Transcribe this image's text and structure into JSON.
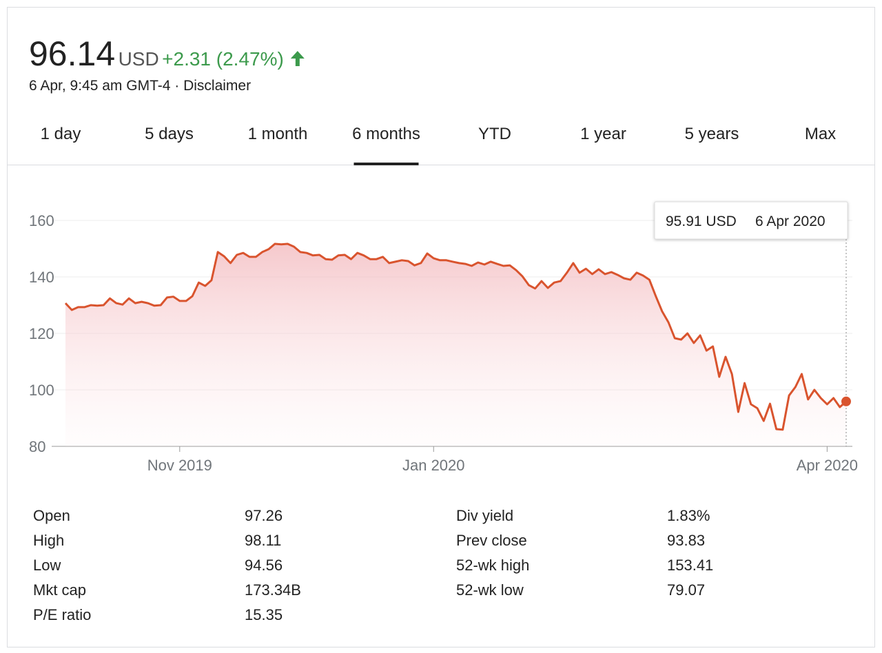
{
  "header": {
    "price": "96.14",
    "currency": "USD",
    "change": "+2.31 (2.47%)",
    "change_color": "#3c9a4c",
    "timestamp": "6 Apr, 9:45 am GMT-4 · Disclaimer"
  },
  "tabs": {
    "items": [
      "1 day",
      "5 days",
      "1 month",
      "6 months",
      "YTD",
      "1 year",
      "5 years",
      "Max"
    ],
    "active": 3
  },
  "chart_data": {
    "type": "line",
    "color": "#d9542e",
    "values": [
      130.7,
      128.3,
      129.3,
      129.3,
      130,
      129.8,
      130,
      132.4,
      130.7,
      130.2,
      132.4,
      130.7,
      131.2,
      130.7,
      129.8,
      130,
      132.7,
      133,
      131.5,
      131.5,
      133.2,
      138,
      136.8,
      138.8,
      148.8,
      147.3,
      144.9,
      147.8,
      148.5,
      147.1,
      147.1,
      148.8,
      149.8,
      151.7,
      151.5,
      151.7,
      150.7,
      148.8,
      148.5,
      147.6,
      147.8,
      146.3,
      146.1,
      147.6,
      147.8,
      146.3,
      148.5,
      147.6,
      146.3,
      146.3,
      147.1,
      144.9,
      145.4,
      145.9,
      145.6,
      144.1,
      144.9,
      148.3,
      146.6,
      145.9,
      145.9,
      145.4,
      144.9,
      144.6,
      143.9,
      145.1,
      144.4,
      145.4,
      144.6,
      143.9,
      144.1,
      142.4,
      140.2,
      137.1,
      135.9,
      138.5,
      136.1,
      138,
      138.5,
      141.5,
      144.9,
      141.5,
      142.9,
      141,
      142.7,
      141,
      141.7,
      140.7,
      139.5,
      139,
      141.5,
      140.5,
      139,
      133.2,
      127.8,
      123.9,
      118.3,
      117.8,
      120,
      116.6,
      119.3,
      113.9,
      115.4,
      104.6,
      111.7,
      105.6,
      92.2,
      102.4,
      94.9,
      93.5,
      89,
      95.1,
      86.1,
      85.9,
      98,
      101,
      105.6,
      96.6,
      100,
      97.1,
      94.9,
      97.1,
      93.9,
      95.91
    ],
    "xlim": [
      0,
      123
    ],
    "xticks": [
      {
        "value": 18,
        "label": "Nov 2019"
      },
      {
        "value": 58,
        "label": "Jan 2020"
      },
      {
        "value": 120,
        "label": "Apr 2020"
      }
    ],
    "ylim": [
      80,
      160
    ],
    "yticks": [
      80,
      100,
      120,
      140,
      160
    ],
    "grid": true,
    "tooltip": {
      "value": "95.91",
      "unit": "USD",
      "date": "6 Apr 2020"
    }
  },
  "stats": {
    "left": [
      [
        "Open",
        "97.26"
      ],
      [
        "High",
        "98.11"
      ],
      [
        "Low",
        "94.56"
      ],
      [
        "Mkt cap",
        "173.34B"
      ],
      [
        "P/E ratio",
        "15.35"
      ]
    ],
    "right": [
      [
        "Div yield",
        "1.83%"
      ],
      [
        "Prev close",
        "93.83"
      ],
      [
        "52-wk high",
        "153.41"
      ],
      [
        "52-wk low",
        "79.07"
      ]
    ]
  }
}
